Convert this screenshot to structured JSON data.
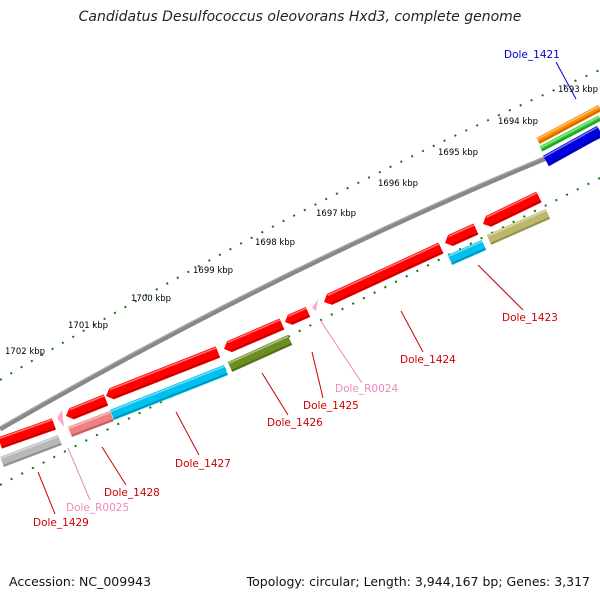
{
  "title": "Candidatus Desulfococcus oleovorans Hxd3, complete genome",
  "footer": {
    "accession": "Accession: NC_009943",
    "summary": "Topology: circular; Length: 3,944,167 bp; Genes: 3,317"
  },
  "ticks": [
    "1693 kbp",
    "1694 kbp",
    "1695 kbp",
    "1696 kbp",
    "1697 kbp",
    "1698 kbp",
    "1699 kbp",
    "1700 kbp",
    "1701 kbp",
    "1702 kbp"
  ],
  "genes": [
    {
      "label": "Dole_1421",
      "color": "#0000cc"
    },
    {
      "label": "Dole_1423",
      "color": "#cc0000"
    },
    {
      "label": "Dole_1424",
      "color": "#cc0000"
    },
    {
      "label": "Dole_R0024",
      "color": "#ee88bb"
    },
    {
      "label": "Dole_1425",
      "color": "#cc0000"
    },
    {
      "label": "Dole_1426",
      "color": "#cc0000"
    },
    {
      "label": "Dole_1427",
      "color": "#cc0000"
    },
    {
      "label": "Dole_1428",
      "color": "#cc0000"
    },
    {
      "label": "Dole_R0025",
      "color": "#ee88bb"
    },
    {
      "label": "Dole_1429",
      "color": "#cc0000"
    }
  ],
  "colors": {
    "backbone": "#888888",
    "gene_red": "#ff0000",
    "cog_cyan": "#00c0f0",
    "cog_olive": "#6b8e23",
    "cog_khaki": "#bdb76b",
    "cog_gray": "#b8b8b8",
    "cog_salmon": "#f08080",
    "rna_pink": "#ffaacc",
    "orange": "#ff8c00",
    "green": "#33cc33",
    "blue": "#0000dd",
    "tick_green": "#0a7a0a"
  }
}
